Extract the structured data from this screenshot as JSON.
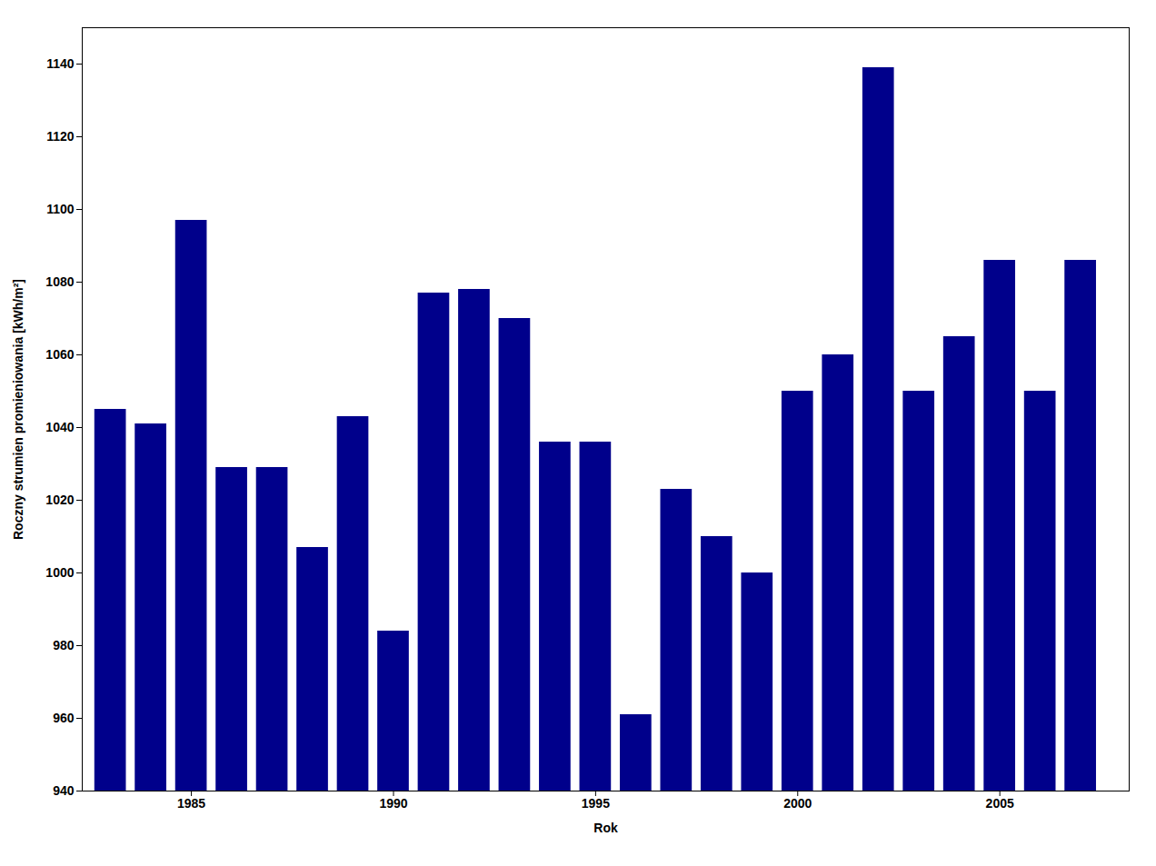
{
  "chart_data": {
    "type": "bar",
    "x": [
      1983,
      1984,
      1985,
      1986,
      1987,
      1988,
      1989,
      1990,
      1991,
      1992,
      1993,
      1994,
      1995,
      1996,
      1997,
      1998,
      1999,
      2000,
      2001,
      2002,
      2003,
      2004,
      2005,
      2006,
      2007
    ],
    "values": [
      1045,
      1041,
      1097,
      1029,
      1029,
      1007,
      1043,
      984,
      1077,
      1078,
      1070,
      1036,
      1036,
      961,
      1023,
      1010,
      1000,
      1050,
      1060,
      1139,
      1050,
      1065,
      1086,
      1050,
      1086
    ],
    "color": "#00008B",
    "xlabel": "Rok",
    "ylabel": "Roczny strumien promieniowania [kWh/m²]",
    "xlim": [
      1982.3,
      2008.2
    ],
    "xticks": [
      1985,
      1990,
      1995,
      2000,
      2005
    ],
    "ylim": [
      940,
      1150
    ],
    "yticks": [
      940,
      960,
      980,
      1000,
      1020,
      1040,
      1060,
      1080,
      1100,
      1120,
      1140
    ],
    "grid": false
  }
}
